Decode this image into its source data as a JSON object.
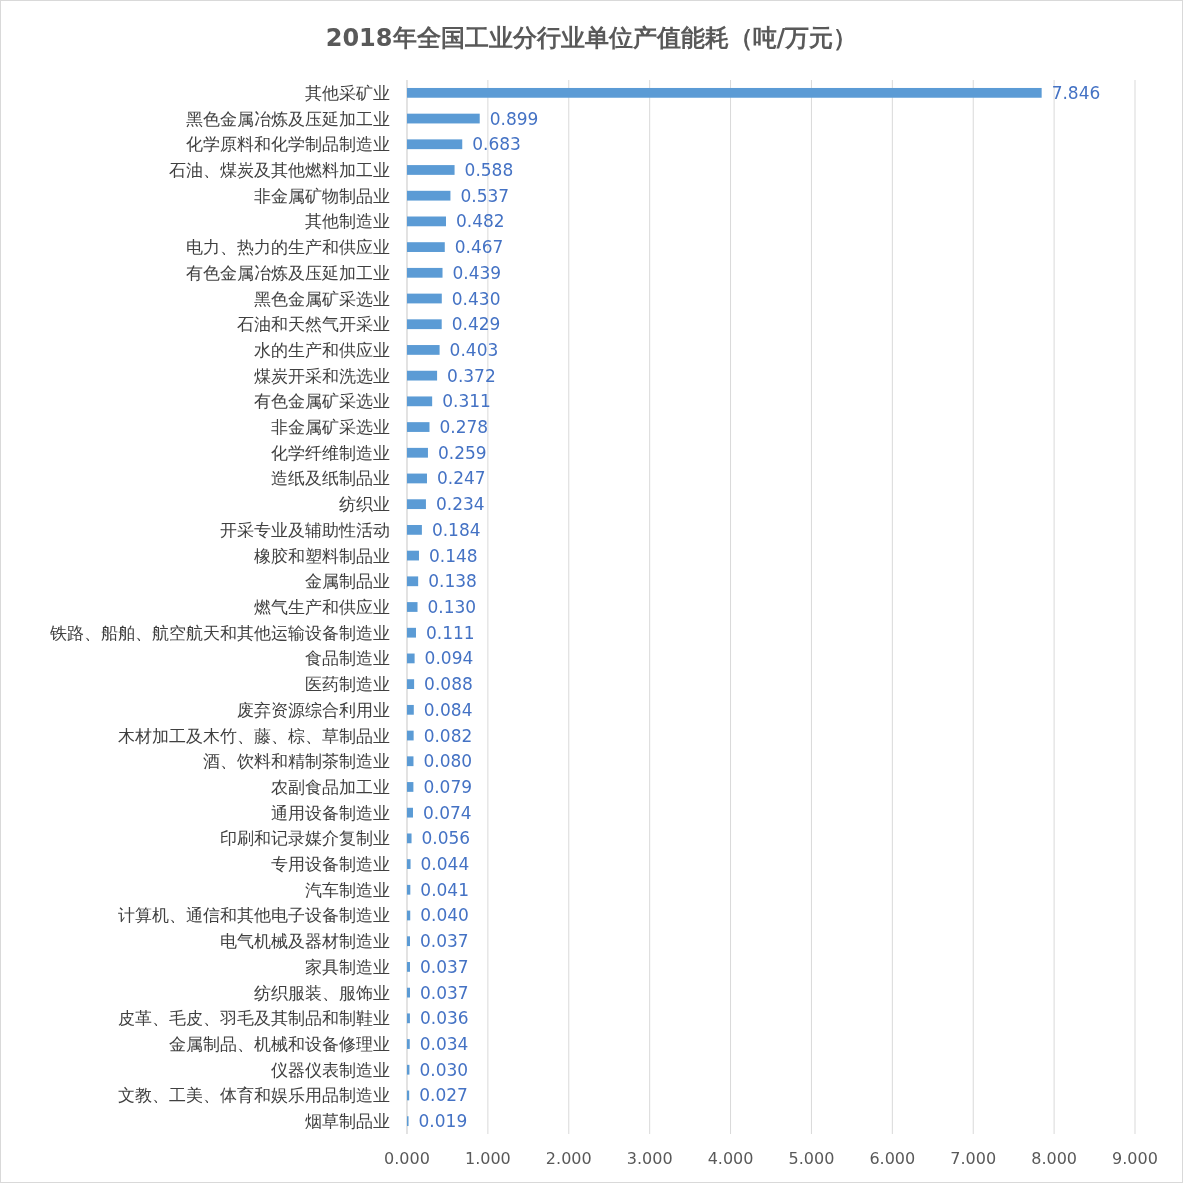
{
  "chart_data": {
    "type": "bar",
    "orientation": "horizontal",
    "title": "2018年全国工业分行业单位产值能耗（吨/万元）",
    "categories": [
      "其他采矿业",
      "黑色金属冶炼及压延加工业",
      "化学原料和化学制品制造业",
      "石油、煤炭及其他燃料加工业",
      "非金属矿物制品业",
      "其他制造业",
      "电力、热力的生产和供应业",
      "有色金属冶炼及压延加工业",
      "黑色金属矿采选业",
      "石油和天然气开采业",
      "水的生产和供应业",
      "煤炭开采和洗选业",
      "有色金属矿采选业",
      "非金属矿采选业",
      "化学纤维制造业",
      "造纸及纸制品业",
      "纺织业",
      "开采专业及辅助性活动",
      "橡胶和塑料制品业",
      "金属制品业",
      "燃气生产和供应业",
      "铁路、船舶、航空航天和其他运输设备制造业",
      "食品制造业",
      "医药制造业",
      "废弃资源综合利用业",
      "木材加工及木竹、藤、棕、草制品业",
      "酒、饮料和精制茶制造业",
      "农副食品加工业",
      "通用设备制造业",
      "印刷和记录媒介复制业",
      "专用设备制造业",
      "汽车制造业",
      "计算机、通信和其他电子设备制造业",
      "电气机械及器材制造业",
      "家具制造业",
      "纺织服装、服饰业",
      "皮革、毛皮、羽毛及其制品和制鞋业",
      "金属制品、机械和设备修理业",
      "仪器仪表制造业",
      "文教、工美、体育和娱乐用品制造业",
      "烟草制品业"
    ],
    "values": [
      7.846,
      0.899,
      0.683,
      0.588,
      0.537,
      0.482,
      0.467,
      0.439,
      0.43,
      0.429,
      0.403,
      0.372,
      0.311,
      0.278,
      0.259,
      0.247,
      0.234,
      0.184,
      0.148,
      0.138,
      0.13,
      0.111,
      0.094,
      0.088,
      0.084,
      0.082,
      0.08,
      0.079,
      0.074,
      0.056,
      0.044,
      0.041,
      0.04,
      0.037,
      0.037,
      0.037,
      0.036,
      0.034,
      0.03,
      0.027,
      0.019
    ],
    "value_labels": [
      "7.846",
      "0.899",
      "0.683",
      "0.588",
      "0.537",
      "0.482",
      "0.467",
      "0.439",
      "0.430",
      "0.429",
      "0.403",
      "0.372",
      "0.311",
      "0.278",
      "0.259",
      "0.247",
      "0.234",
      "0.184",
      "0.148",
      "0.138",
      "0.130",
      "0.111",
      "0.094",
      "0.088",
      "0.084",
      "0.082",
      "0.080",
      "0.079",
      "0.074",
      "0.056",
      "0.044",
      "0.041",
      "0.040",
      "0.037",
      "0.037",
      "0.037",
      "0.036",
      "0.034",
      "0.030",
      "0.027",
      "0.019"
    ],
    "color": "#5b9bd5",
    "grid": "x",
    "xlim": [
      0,
      9
    ],
    "xticks": [
      {
        "value": 0,
        "label": "0.000"
      },
      {
        "value": 1,
        "label": "1.000"
      },
      {
        "value": 2,
        "label": "2.000"
      },
      {
        "value": 3,
        "label": "3.000"
      },
      {
        "value": 4,
        "label": "4.000"
      },
      {
        "value": 5,
        "label": "5.000"
      },
      {
        "value": 6,
        "label": "6.000"
      },
      {
        "value": 7,
        "label": "7.000"
      },
      {
        "value": 8,
        "label": "8.000"
      },
      {
        "value": 9,
        "label": "9.000"
      }
    ]
  }
}
